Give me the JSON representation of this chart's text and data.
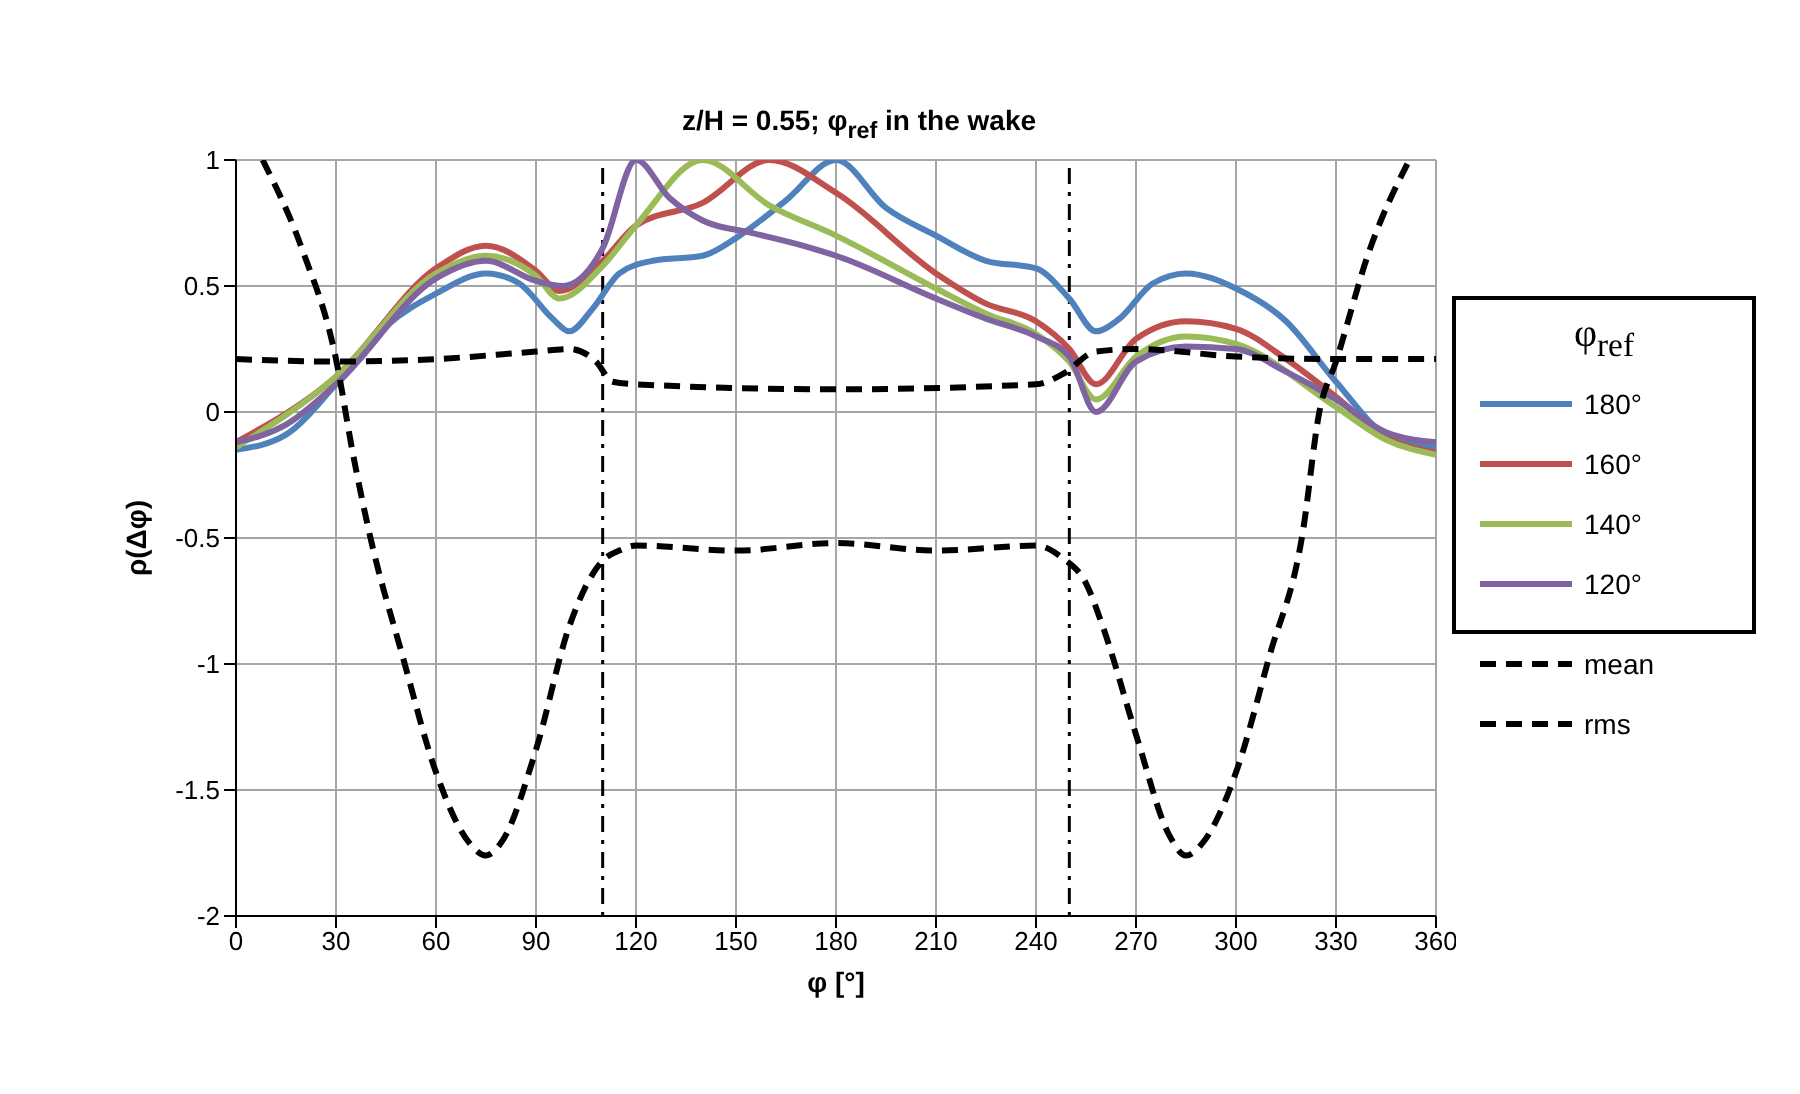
{
  "chart_data": {
    "type": "line",
    "title": "z/H = 0.55; φ$_{ref}$ in the wake",
    "xlabel": "φ [°]",
    "ylabel": "ρ(Δφ)",
    "legend_title": "φ$_{ref}$",
    "xlim": [
      0,
      360
    ],
    "xticks": [
      0,
      30,
      60,
      90,
      120,
      150,
      180,
      210,
      240,
      270,
      300,
      330,
      360
    ],
    "ylim": [
      -2,
      1
    ],
    "yticks": [
      -2,
      -1.5,
      -1,
      -0.5,
      0,
      0.5,
      1
    ],
    "grid": true,
    "legend": "right",
    "marker": "none",
    "ref_lines": [
      {
        "axis": "x",
        "value": 110,
        "color": "#000000",
        "line_style": "dotted"
      },
      {
        "axis": "x",
        "value": 250,
        "color": "#000000",
        "line_style": "dotted"
      }
    ],
    "series": [
      {
        "name": "180°",
        "color": "#4f81bd",
        "x": [
          0,
          15,
          30,
          45,
          60,
          75,
          85,
          95,
          100,
          107,
          115,
          125,
          140,
          150,
          165,
          180,
          195,
          210,
          225,
          240,
          250,
          258,
          265,
          275,
          285,
          300,
          315,
          330,
          345,
          360
        ],
        "values": [
          -0.15,
          -0.09,
          0.11,
          0.34,
          0.47,
          0.55,
          0.51,
          0.37,
          0.32,
          0.41,
          0.55,
          0.6,
          0.62,
          0.69,
          0.84,
          1,
          0.81,
          0.7,
          0.6,
          0.57,
          0.45,
          0.32,
          0.37,
          0.51,
          0.55,
          0.49,
          0.36,
          0.12,
          -0.09,
          -0.14
        ]
      },
      {
        "name": "160°",
        "color": "#c0504d",
        "x": [
          0,
          30,
          60,
          75,
          90,
          97,
          110,
          120,
          140,
          160,
          180,
          210,
          225,
          240,
          250,
          258,
          270,
          285,
          300,
          315,
          330,
          345,
          360
        ],
        "values": [
          -0.12,
          0.14,
          0.57,
          0.66,
          0.56,
          0.48,
          0.6,
          0.74,
          0.83,
          1,
          0.87,
          0.55,
          0.43,
          0.36,
          0.25,
          0.11,
          0.29,
          0.36,
          0.33,
          0.21,
          0.06,
          -0.1,
          -0.16
        ]
      },
      {
        "name": "140°",
        "color": "#9bbb59",
        "x": [
          0,
          30,
          60,
          75,
          90,
          97,
          110,
          120,
          140,
          160,
          180,
          210,
          225,
          240,
          250,
          258,
          270,
          285,
          300,
          330,
          345,
          360
        ],
        "values": [
          -0.14,
          0.14,
          0.55,
          0.62,
          0.54,
          0.45,
          0.58,
          0.74,
          1,
          0.82,
          0.7,
          0.49,
          0.39,
          0.31,
          0.2,
          0.05,
          0.22,
          0.3,
          0.27,
          0.02,
          -0.11,
          -0.17
        ]
      },
      {
        "name": "120°",
        "color": "#8064a2",
        "x": [
          0,
          15,
          30,
          60,
          75,
          90,
          98,
          110,
          120,
          130,
          140,
          155,
          170,
          180,
          210,
          225,
          240,
          250,
          258,
          270,
          285,
          300,
          315,
          330,
          345,
          360
        ],
        "values": [
          -0.12,
          -0.05,
          0.11,
          0.53,
          0.6,
          0.52,
          0.5,
          0.65,
          1,
          0.85,
          0.76,
          0.71,
          0.66,
          0.62,
          0.45,
          0.37,
          0.3,
          0.22,
          0,
          0.2,
          0.26,
          0.25,
          0.16,
          0.05,
          -0.08,
          -0.12
        ]
      },
      {
        "name": "mean",
        "color": "#000000",
        "line_style": "dashed",
        "x": [
          0,
          30,
          60,
          90,
          100,
          108,
          113,
          120,
          180,
          240,
          248,
          258,
          270,
          300,
          330,
          360
        ],
        "values": [
          0.21,
          0.2,
          0.21,
          0.24,
          0.25,
          0.2,
          0.12,
          0.11,
          0.09,
          0.11,
          0.15,
          0.24,
          0.25,
          0.22,
          0.21,
          0.21
        ]
      },
      {
        "name": "rms",
        "color": "#000000",
        "line_style": "dashed",
        "x": [
          8,
          20,
          30,
          35,
          40,
          50,
          60,
          70,
          75,
          80,
          90,
          100,
          110,
          115,
          120,
          150,
          180,
          210,
          240,
          248,
          255,
          260,
          270,
          280,
          285,
          290,
          300,
          310,
          320,
          325,
          330,
          340,
          352
        ],
        "values": [
          1,
          0.64,
          0.21,
          -0.16,
          -0.48,
          -0.97,
          -1.43,
          -1.71,
          -1.76,
          -1.7,
          -1.34,
          -0.85,
          -0.59,
          -0.55,
          -0.53,
          -0.55,
          -0.52,
          -0.55,
          -0.53,
          -0.58,
          -0.68,
          -0.85,
          -1.28,
          -1.68,
          -1.76,
          -1.71,
          -1.43,
          -0.97,
          -0.48,
          0,
          0.2,
          0.64,
          1
        ]
      }
    ]
  }
}
